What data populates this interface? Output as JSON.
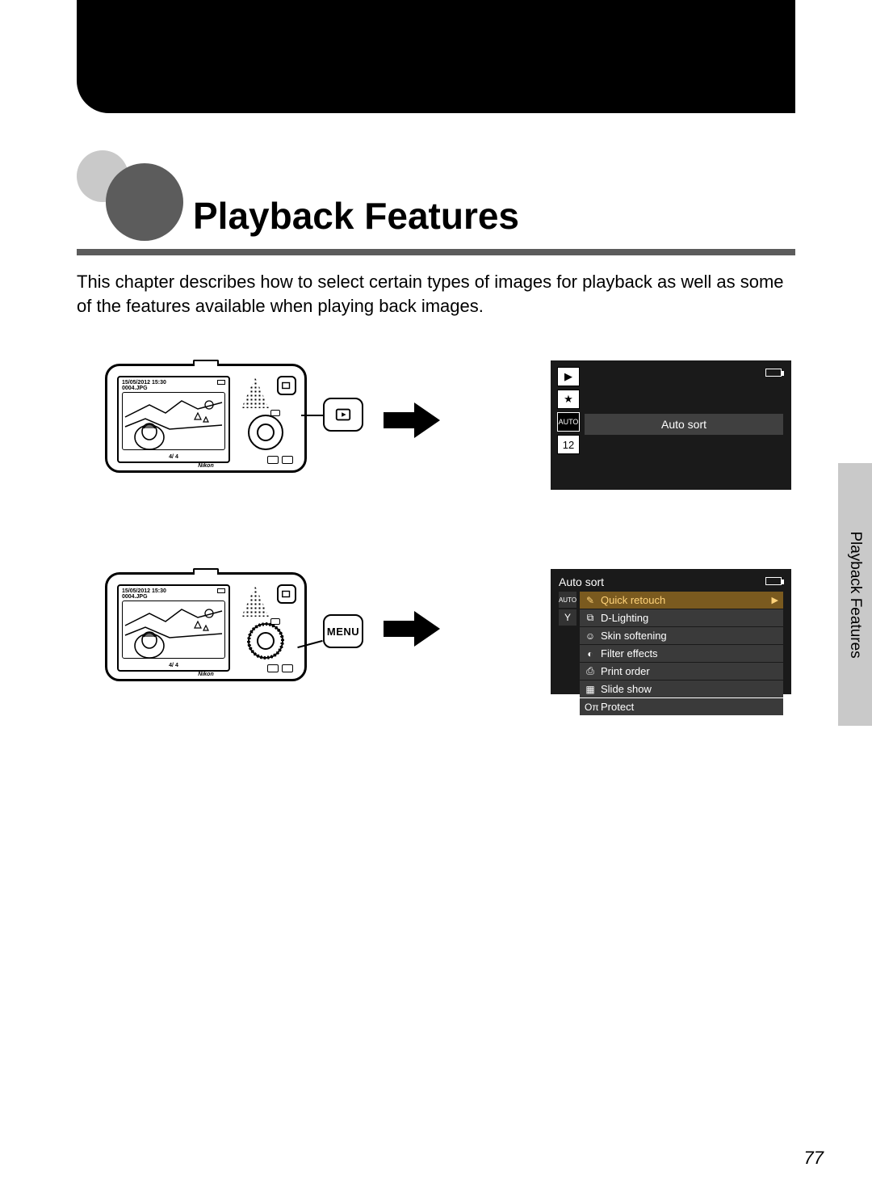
{
  "page": {
    "title": "Playback Features",
    "intro": "This chapter describes how to select certain types of images for playback as well as some of the features available when playing back images.",
    "side_tab": "Playback Features",
    "page_number": "77"
  },
  "camera": {
    "timestamp": "15/05/2012 15:30",
    "filename": "0004.JPG",
    "count": "4/ 4",
    "brand": "Nikon"
  },
  "callout": {
    "row1_label": "▶",
    "row2_label": "MENU"
  },
  "screen1": {
    "selected_label": "Auto sort",
    "tabs": [
      {
        "glyph": "▶",
        "style": "outline"
      },
      {
        "glyph": "★",
        "style": "outline"
      },
      {
        "glyph": "AUTO",
        "style": "solid"
      },
      {
        "glyph": "12",
        "style": "outline"
      }
    ]
  },
  "screen2": {
    "title": "Auto sort",
    "left_tabs": [
      "AUTO",
      "Y"
    ],
    "items": [
      {
        "icon": "✎",
        "label": "Quick retouch",
        "selected": true
      },
      {
        "icon": "⧉",
        "label": "D-Lighting",
        "selected": false
      },
      {
        "icon": "☺",
        "label": "Skin softening",
        "selected": false
      },
      {
        "icon": "◐",
        "label": "Filter effects",
        "selected": false
      },
      {
        "icon": "⎙",
        "label": "Print order",
        "selected": false
      },
      {
        "icon": "▦",
        "label": "Slide show",
        "selected": false
      },
      {
        "icon": "Oπ",
        "label": "Protect",
        "selected": false
      }
    ]
  },
  "colors": {
    "page_bg": "#ffffff",
    "header_bullet_dark": "#5c5c5c",
    "header_bullet_light": "#c9c9c9",
    "rule": "#5c5c5c",
    "screen_bg": "#1a1a1a",
    "screen_row_bg": "#3a3a3a",
    "screen_row_sel_bg": "#7a5a1f",
    "screen_row_sel_fg": "#ffd37a"
  }
}
